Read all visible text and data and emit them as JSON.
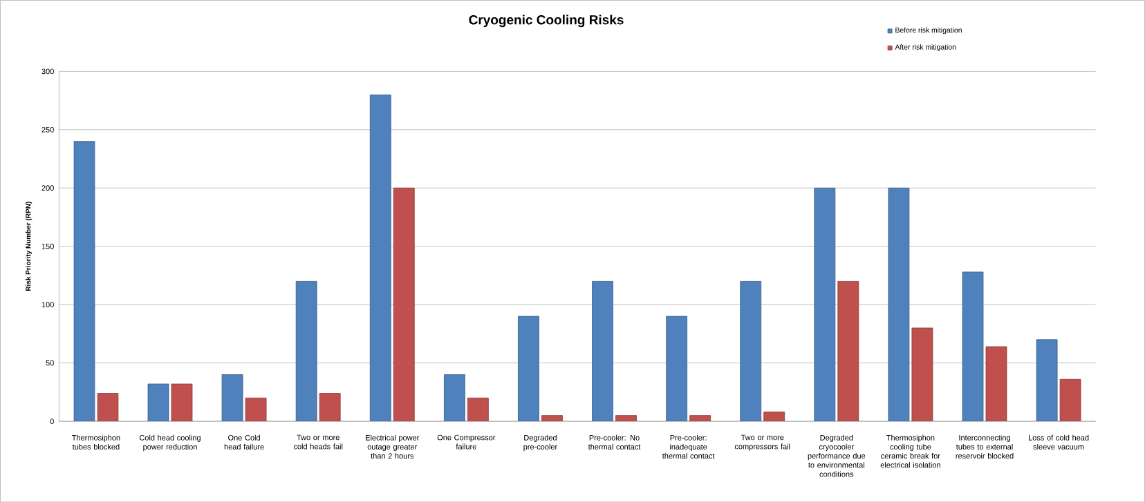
{
  "chart_data": {
    "type": "bar",
    "title": "Cryogenic Cooling Risks",
    "ylabel": "Risk Priority Number (RPN)",
    "categories": [
      "Thermosiphon tubes blocked",
      "Cold head cooling power reduction",
      "One Cold head failure",
      "Two or more cold heads fail",
      "Electrical power outage greater than 2 hours",
      "One Compressor failure",
      "Degraded pre-cooler",
      "Pre-cooler: No thermal contact",
      "Pre-cooler: inadequate thermal contact",
      "Two or more compressors fail",
      "Degraded cryocooler performance due to environmental conditions",
      "Thermosiphon cooling tube ceramic break for electrical isolation",
      "Interconnecting tubes to external reservoir blocked",
      "Loss of cold head sleeve vacuum"
    ],
    "series": [
      {
        "name": "Before risk mitigation",
        "color": "#4f81bd",
        "values": [
          240,
          32,
          40,
          120,
          280,
          40,
          90,
          120,
          90,
          120,
          200,
          200,
          128,
          70
        ]
      },
      {
        "name": "After risk mitigation",
        "color": "#c0504d",
        "values": [
          24,
          32,
          20,
          24,
          200,
          20,
          5,
          5,
          5,
          8,
          120,
          80,
          64,
          36
        ]
      }
    ],
    "ylim": [
      0,
      300
    ],
    "yticks": [
      0,
      50,
      100,
      150,
      200,
      250,
      300
    ],
    "grid": "y",
    "legend": "top right"
  }
}
